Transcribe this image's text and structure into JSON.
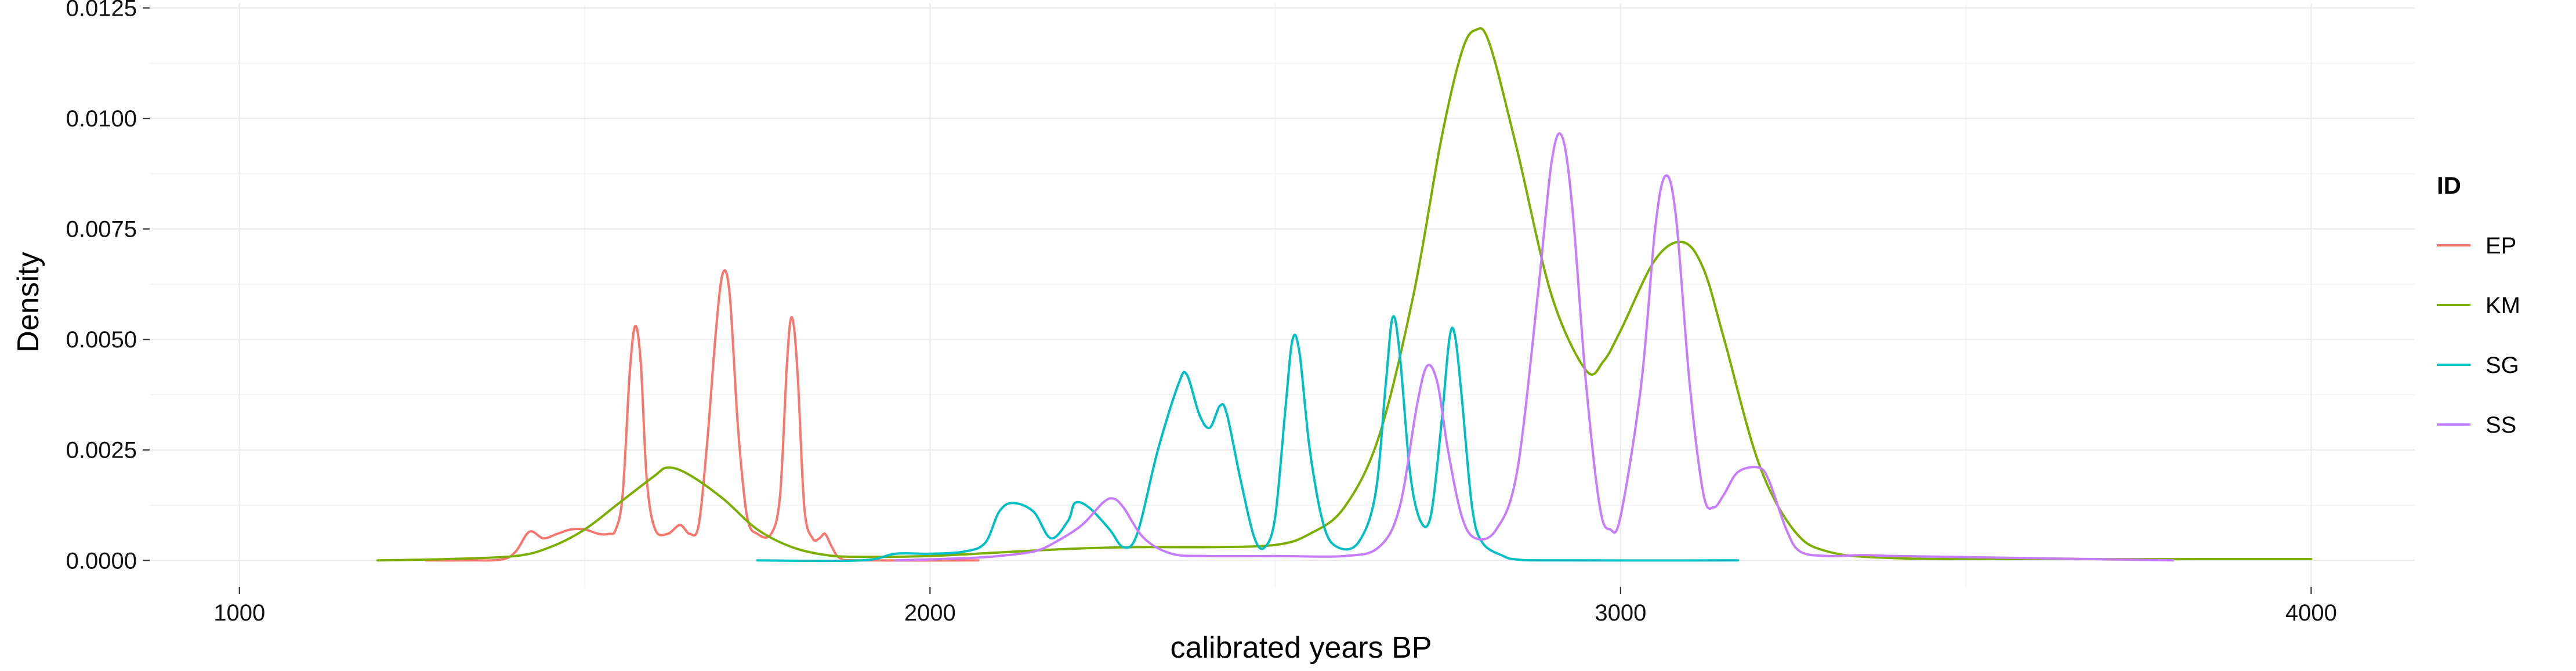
{
  "chart_data": {
    "type": "line",
    "xlabel": "calibrated years BP",
    "ylabel": "Density",
    "xlim": [
      870,
      4150
    ],
    "ylim": [
      -0.0006,
      0.0126
    ],
    "x_ticks": [
      1000,
      2000,
      3000,
      4000
    ],
    "x_tick_labels": [
      "1000",
      "2000",
      "3000",
      "4000"
    ],
    "y_ticks": [
      0,
      0.0025,
      0.005,
      0.0075,
      0.01,
      0.0125
    ],
    "y_tick_labels": [
      "0.0000",
      "0.0025",
      "0.0050",
      "0.0075",
      "0.0100",
      "0.0125"
    ],
    "grid": true,
    "legend": {
      "title": "ID",
      "position": "right"
    },
    "series": [
      {
        "name": "EP",
        "color": "#F8766D",
        "points": [
          [
            1270,
            0
          ],
          [
            1330,
            0
          ],
          [
            1380,
            2e-05
          ],
          [
            1400,
            0.0002
          ],
          [
            1420,
            0.00065
          ],
          [
            1440,
            0.0005
          ],
          [
            1460,
            0.0006
          ],
          [
            1480,
            0.0007
          ],
          [
            1500,
            0.0007
          ],
          [
            1520,
            0.0006
          ],
          [
            1535,
            0.0006
          ],
          [
            1545,
            0.0007
          ],
          [
            1555,
            0.0015
          ],
          [
            1565,
            0.0042
          ],
          [
            1573,
            0.0053
          ],
          [
            1581,
            0.0045
          ],
          [
            1590,
            0.0018
          ],
          [
            1602,
            0.0007
          ],
          [
            1620,
            0.0006
          ],
          [
            1638,
            0.0008
          ],
          [
            1652,
            0.0006
          ],
          [
            1665,
            0.0008
          ],
          [
            1678,
            0.0028
          ],
          [
            1690,
            0.0052
          ],
          [
            1700,
            0.0065
          ],
          [
            1710,
            0.006
          ],
          [
            1722,
            0.003
          ],
          [
            1735,
            0.001
          ],
          [
            1750,
            0.0006
          ],
          [
            1770,
            0.0006
          ],
          [
            1783,
            0.0015
          ],
          [
            1793,
            0.0045
          ],
          [
            1800,
            0.0055
          ],
          [
            1808,
            0.0043
          ],
          [
            1818,
            0.0012
          ],
          [
            1830,
            0.0005
          ],
          [
            1840,
            0.0005
          ],
          [
            1848,
            0.0006
          ],
          [
            1858,
            0.0003
          ],
          [
            1870,
            5e-05
          ],
          [
            1900,
            0
          ],
          [
            2070,
            0
          ]
        ]
      },
      {
        "name": "KM",
        "color": "#7CAE00",
        "points": [
          [
            1200,
            0
          ],
          [
            1300,
            3e-05
          ],
          [
            1400,
            0.0001
          ],
          [
            1450,
            0.0003
          ],
          [
            1500,
            0.0007
          ],
          [
            1550,
            0.0013
          ],
          [
            1600,
            0.0019
          ],
          [
            1620,
            0.0021
          ],
          [
            1650,
            0.00195
          ],
          [
            1700,
            0.0014
          ],
          [
            1750,
            0.0007
          ],
          [
            1800,
            0.0003
          ],
          [
            1850,
            0.00012
          ],
          [
            1900,
            8e-05
          ],
          [
            2000,
            0.0001
          ],
          [
            2100,
            0.00018
          ],
          [
            2200,
            0.00026
          ],
          [
            2300,
            0.0003
          ],
          [
            2400,
            0.0003
          ],
          [
            2500,
            0.00035
          ],
          [
            2550,
            0.0006
          ],
          [
            2600,
            0.0012
          ],
          [
            2650,
            0.0028
          ],
          [
            2700,
            0.006
          ],
          [
            2740,
            0.0095
          ],
          [
            2770,
            0.0115
          ],
          [
            2790,
            0.012
          ],
          [
            2810,
            0.0117
          ],
          [
            2850,
            0.0093
          ],
          [
            2900,
            0.006
          ],
          [
            2950,
            0.0043
          ],
          [
            2975,
            0.0045
          ],
          [
            3000,
            0.0052
          ],
          [
            3050,
            0.0068
          ],
          [
            3090,
            0.0072
          ],
          [
            3120,
            0.0066
          ],
          [
            3150,
            0.005
          ],
          [
            3200,
            0.0022
          ],
          [
            3250,
            0.0007
          ],
          [
            3300,
            0.0002
          ],
          [
            3400,
            5e-05
          ],
          [
            3600,
            3e-05
          ],
          [
            4000,
            3e-05
          ]
        ]
      },
      {
        "name": "SG",
        "color": "#00BFC4",
        "points": [
          [
            1750,
            0
          ],
          [
            1900,
            0
          ],
          [
            1950,
            0.00015
          ],
          [
            2000,
            0.00015
          ],
          [
            2050,
            0.0002
          ],
          [
            2080,
            0.0004
          ],
          [
            2100,
            0.0011
          ],
          [
            2120,
            0.0013
          ],
          [
            2150,
            0.0011
          ],
          [
            2175,
            0.0005
          ],
          [
            2200,
            0.0009
          ],
          [
            2210,
            0.0013
          ],
          [
            2230,
            0.0012
          ],
          [
            2260,
            0.0007
          ],
          [
            2280,
            0.0003
          ],
          [
            2300,
            0.0006
          ],
          [
            2330,
            0.0025
          ],
          [
            2360,
            0.004
          ],
          [
            2372,
            0.0042
          ],
          [
            2390,
            0.0033
          ],
          [
            2405,
            0.003
          ],
          [
            2420,
            0.0035
          ],
          [
            2430,
            0.0033
          ],
          [
            2450,
            0.0018
          ],
          [
            2470,
            0.0005
          ],
          [
            2485,
            0.0003
          ],
          [
            2500,
            0.001
          ],
          [
            2515,
            0.0035
          ],
          [
            2525,
            0.005
          ],
          [
            2535,
            0.0047
          ],
          [
            2550,
            0.0025
          ],
          [
            2570,
            0.0008
          ],
          [
            2590,
            0.0003
          ],
          [
            2620,
            0.0004
          ],
          [
            2645,
            0.0015
          ],
          [
            2660,
            0.004
          ],
          [
            2670,
            0.0055
          ],
          [
            2680,
            0.0047
          ],
          [
            2695,
            0.002
          ],
          [
            2710,
            0.0009
          ],
          [
            2725,
            0.001
          ],
          [
            2740,
            0.003
          ],
          [
            2752,
            0.005
          ],
          [
            2760,
            0.0051
          ],
          [
            2770,
            0.0037
          ],
          [
            2785,
            0.0012
          ],
          [
            2800,
            0.0004
          ],
          [
            2830,
            0.0001
          ],
          [
            2850,
            2e-05
          ],
          [
            2900,
            0
          ],
          [
            3170,
            0
          ]
        ]
      },
      {
        "name": "SS",
        "color": "#C77CFF",
        "points": [
          [
            1950,
            0
          ],
          [
            2050,
            5e-05
          ],
          [
            2100,
            0.0001
          ],
          [
            2150,
            0.0002
          ],
          [
            2180,
            0.0004
          ],
          [
            2220,
            0.0008
          ],
          [
            2250,
            0.0013
          ],
          [
            2265,
            0.0014
          ],
          [
            2280,
            0.0012
          ],
          [
            2310,
            0.0005
          ],
          [
            2350,
            0.00015
          ],
          [
            2400,
            0.0001
          ],
          [
            2500,
            0.0001
          ],
          [
            2600,
            0.0001
          ],
          [
            2650,
            0.0003
          ],
          [
            2680,
            0.0012
          ],
          [
            2705,
            0.0035
          ],
          [
            2720,
            0.0044
          ],
          [
            2735,
            0.004
          ],
          [
            2750,
            0.0025
          ],
          [
            2770,
            0.001
          ],
          [
            2790,
            0.0005
          ],
          [
            2820,
            0.0007
          ],
          [
            2850,
            0.002
          ],
          [
            2880,
            0.006
          ],
          [
            2900,
            0.009
          ],
          [
            2915,
            0.0096
          ],
          [
            2930,
            0.008
          ],
          [
            2950,
            0.004
          ],
          [
            2970,
            0.0012
          ],
          [
            2985,
            0.0007
          ],
          [
            3000,
            0.001
          ],
          [
            3030,
            0.004
          ],
          [
            3050,
            0.0075
          ],
          [
            3065,
            0.0087
          ],
          [
            3080,
            0.0078
          ],
          [
            3100,
            0.004
          ],
          [
            3120,
            0.0015
          ],
          [
            3135,
            0.0012
          ],
          [
            3150,
            0.0015
          ],
          [
            3170,
            0.002
          ],
          [
            3200,
            0.0021
          ],
          [
            3215,
            0.0018
          ],
          [
            3240,
            0.0007
          ],
          [
            3260,
            0.0002
          ],
          [
            3300,
            0.0001
          ],
          [
            3350,
            0.00012
          ],
          [
            3400,
            0.0001
          ],
          [
            3600,
            5e-05
          ],
          [
            3800,
            0
          ]
        ]
      }
    ]
  }
}
